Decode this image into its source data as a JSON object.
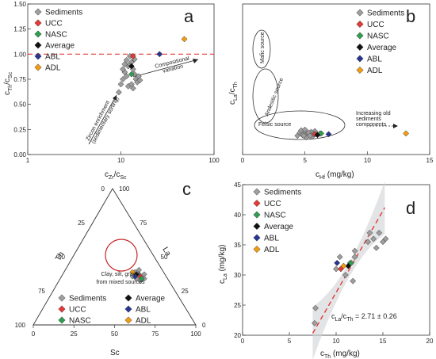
{
  "chart_data": [
    {
      "panel": "a",
      "type": "scatter",
      "xlabel": "cZr/cSc",
      "ylabel": "cTh/cSc",
      "xscale": "log",
      "xlim": [
        1,
        100
      ],
      "ylim": [
        0,
        1.5
      ],
      "xticks": [
        "1",
        "10",
        "100"
      ],
      "yticks": [
        "0.00",
        "0.25",
        "0.50",
        "0.75",
        "1.00",
        "1.25",
        "1.50"
      ],
      "reference_line": {
        "y": 1.0,
        "style": "dashed",
        "color": "#e53935"
      },
      "annotations": [
        "Compositional variation",
        "Zircon enrichment (sedimentary sorting)"
      ],
      "legend_position": "top-left",
      "series": [
        {
          "name": "Sediments",
          "points": [
            [
              9.5,
              0.62
            ],
            [
              10,
              0.7
            ],
            [
              10.5,
              0.75
            ],
            [
              11,
              0.82
            ],
            [
              11.5,
              0.78
            ],
            [
              12,
              0.88
            ],
            [
              12.5,
              0.9
            ],
            [
              13,
              0.92
            ],
            [
              13.5,
              0.85
            ],
            [
              14,
              0.8
            ],
            [
              14.5,
              0.75
            ],
            [
              15,
              0.72
            ],
            [
              12,
              0.68
            ],
            [
              11,
              0.9
            ],
            [
              13,
              0.7
            ],
            [
              14,
              0.95
            ],
            [
              10.5,
              0.85
            ],
            [
              12.5,
              0.98
            ],
            [
              15.5,
              0.78
            ],
            [
              16,
              0.74
            ],
            [
              13.5,
              0.66
            ],
            [
              11.5,
              0.94
            ]
          ]
        },
        {
          "name": "UCC",
          "points": [
            [
              13.5,
              0.98
            ]
          ]
        },
        {
          "name": "NASC",
          "points": [
            [
              13,
              0.8
            ]
          ]
        },
        {
          "name": "Average",
          "points": [
            [
              13,
              0.88
            ]
          ]
        },
        {
          "name": "ABL",
          "points": [
            [
              26,
              1.0
            ]
          ]
        },
        {
          "name": "ADL",
          "points": [
            [
              48,
              1.15
            ]
          ]
        }
      ]
    },
    {
      "panel": "b",
      "type": "scatter",
      "xlabel": "cHf (mg/kg)",
      "ylabel": "cLa/cTh",
      "xlim": [
        0,
        15
      ],
      "ylim": [
        0,
        20
      ],
      "xticks": [
        "0",
        "5",
        "10",
        "15"
      ],
      "annotations": [
        "Mafic source",
        "Andesitic source",
        "Felsic source",
        "Increasing old sediments components"
      ],
      "legend_position": "top-right",
      "series": [
        {
          "name": "Sediments",
          "points": [
            [
              4.4,
              2.5
            ],
            [
              4.6,
              2.9
            ],
            [
              4.8,
              2.6
            ],
            [
              5.0,
              3.0
            ],
            [
              5.2,
              2.7
            ],
            [
              5.4,
              2.8
            ],
            [
              5.6,
              2.4
            ],
            [
              5.8,
              3.1
            ],
            [
              6.0,
              2.6
            ],
            [
              4.7,
              3.2
            ],
            [
              5.1,
              2.3
            ],
            [
              5.5,
              3.0
            ],
            [
              4.9,
              2.5
            ],
            [
              5.3,
              2.9
            ],
            [
              5.7,
              2.7
            ],
            [
              6.2,
              2.8
            ],
            [
              5.0,
              3.3
            ],
            [
              5.4,
              2.5
            ]
          ]
        },
        {
          "name": "UCC",
          "points": [
            [
              5.8,
              2.7
            ]
          ]
        },
        {
          "name": "NASC",
          "points": [
            [
              6.3,
              2.8
            ]
          ]
        },
        {
          "name": "Average",
          "points": [
            [
              6.0,
              2.6
            ]
          ]
        },
        {
          "name": "ABL",
          "points": [
            [
              6.9,
              2.7
            ]
          ]
        },
        {
          "name": "ADL",
          "points": [
            [
              13.1,
              2.8
            ]
          ]
        }
      ]
    },
    {
      "panel": "c",
      "type": "ternary",
      "axes": {
        "left": "Th",
        "right": "La",
        "bottom": "Sc"
      },
      "ticks": [
        "0",
        "25",
        "50",
        "75",
        "100"
      ],
      "annotations": [
        "Clay, silt, gravel from mixed sources"
      ],
      "legend_position": "bottom",
      "series": [
        {
          "name": "Sediments",
          "points": [
            [
              0.36,
              0.24,
              0.4
            ],
            [
              0.34,
              0.26,
              0.4
            ],
            [
              0.35,
              0.27,
              0.38
            ],
            [
              0.37,
              0.25,
              0.38
            ],
            [
              0.33,
              0.25,
              0.42
            ],
            [
              0.36,
              0.22,
              0.42
            ],
            [
              0.34,
              0.23,
              0.43
            ],
            [
              0.38,
              0.23,
              0.39
            ]
          ]
        },
        {
          "name": "UCC",
          "points": [
            [
              0.35,
              0.24,
              0.41
            ]
          ]
        },
        {
          "name": "NASC",
          "points": [
            [
              0.34,
              0.24,
              0.42
            ]
          ]
        },
        {
          "name": "Average",
          "points": [
            [
              0.36,
              0.25,
              0.39
            ]
          ]
        },
        {
          "name": "ABL",
          "points": [
            [
              0.35,
              0.26,
              0.39
            ]
          ]
        },
        {
          "name": "ADL",
          "points": [
            [
              0.37,
              0.26,
              0.37
            ]
          ]
        }
      ]
    },
    {
      "panel": "d",
      "type": "scatter",
      "xlabel": "cTh (mg/kg)",
      "ylabel": "cLa (mg/kg)",
      "xlim": [
        0,
        20
      ],
      "ylim": [
        20,
        45
      ],
      "xticks": [
        "0",
        "5",
        "10",
        "15",
        "20"
      ],
      "yticks": [
        "20",
        "25",
        "30",
        "35",
        "40",
        "45"
      ],
      "fit_line": {
        "slope": 2.71,
        "x_from": 7.5,
        "x_to": 15.2,
        "color": "#e53935",
        "style": "dashed"
      },
      "annotations": [
        "cLa/cTh = 2.71 ± 0.26"
      ],
      "legend_position": "top-left",
      "series": [
        {
          "name": "Sediments",
          "points": [
            [
              7.7,
              22
            ],
            [
              7.8,
              24.5
            ],
            [
              10,
              31
            ],
            [
              10.4,
              33
            ],
            [
              11,
              30
            ],
            [
              11.5,
              32
            ],
            [
              11.8,
              29
            ],
            [
              12,
              33
            ],
            [
              12,
              34
            ],
            [
              13.4,
              35.5
            ],
            [
              13.6,
              37
            ],
            [
              14,
              36
            ],
            [
              14.3,
              34.5
            ],
            [
              14.6,
              37
            ],
            [
              15,
              35.5
            ],
            [
              15.3,
              36
            ]
          ]
        },
        {
          "name": "UCC",
          "points": [
            [
              10.5,
              31
            ]
          ]
        },
        {
          "name": "NASC",
          "points": [
            [
              11.6,
              32
            ]
          ]
        },
        {
          "name": "Average",
          "points": [
            [
              11.3,
              31.5
            ]
          ]
        },
        {
          "name": "ABL",
          "points": [
            [
              10.1,
              32
            ]
          ]
        },
        {
          "name": "ADL",
          "points": [
            [
              10.8,
              31.5
            ]
          ]
        }
      ]
    }
  ],
  "panels": {
    "a": {
      "letter": "a",
      "xlabel_base_1": "c",
      "xlabel_sub_1": "Zr",
      "xlabel_mid": "/c",
      "xlabel_sub_2": "Sc",
      "ylabel_base_1": "c",
      "ylabel_sub_1": "Th",
      "ylabel_mid": "/c",
      "ylabel_sub_2": "Sc",
      "ann_comp_1": "Compositional",
      "ann_comp_2": "variation",
      "ann_zircon_1": "Zircon enrichment",
      "ann_zircon_2": "(sedimentary sorting)"
    },
    "b": {
      "letter": "b",
      "xlabel_base": "c",
      "xlabel_sub": "Hf",
      "xlabel_unit": " (mg/kg)",
      "ylabel_base_1": "c",
      "ylabel_sub_1": "La",
      "ylabel_mid": "/c",
      "ylabel_sub_2": "Th",
      "ann_mafic": "Mafic source",
      "ann_andesitic": "Andesitic source",
      "ann_felsic": "Felsic source",
      "ann_old_1": "Increasing old",
      "ann_old_2": "sediments",
      "ann_old_3": "components"
    },
    "c": {
      "letter": "c",
      "axis_left": "Th",
      "axis_right": "La",
      "axis_bottom": "Sc",
      "ann_1": "Clay, silt, gravel",
      "ann_2": "from mixed sources"
    },
    "d": {
      "letter": "d",
      "xlabel_base": "c",
      "xlabel_sub": "Th",
      "xlabel_unit": " (mg/kg)",
      "ylabel_base": "c",
      "ylabel_sub": "La",
      "ylabel_unit": " (mg/kg)",
      "ann_base_1": "c",
      "ann_sub_1": "La",
      "ann_mid": "/c",
      "ann_sub_2": "Th",
      "ann_rest": " = 2.71 ± 0.26"
    }
  },
  "legend": [
    {
      "label": "Sediments",
      "color": "#9e9e9e"
    },
    {
      "label": "UCC",
      "color": "#e53935"
    },
    {
      "label": "NASC",
      "color": "#2e9e4f"
    },
    {
      "label": "Average",
      "color": "#111111"
    },
    {
      "label": "ABL",
      "color": "#283593"
    },
    {
      "label": "ADL",
      "color": "#f39c12"
    }
  ]
}
